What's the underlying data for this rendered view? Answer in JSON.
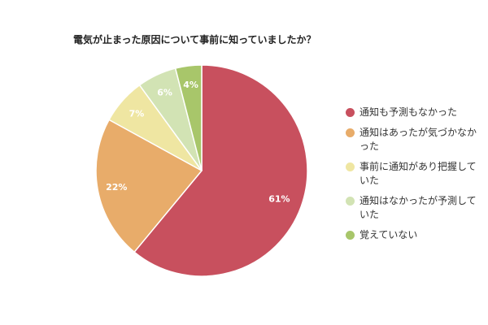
{
  "chart_data": {
    "type": "pie",
    "title": "電気が止まった原因について事前に知っていましたか？",
    "categories": [
      "通知も予測もなかった",
      "通知はあったが気づかなかった",
      "事前に通知があり把握していた",
      "通知はなかったが予測していた",
      "覚えていない"
    ],
    "values": [
      61,
      22,
      7,
      6,
      4
    ],
    "data_labels": [
      "61%",
      "22%",
      "7%",
      "6%",
      "4%"
    ],
    "colors": [
      "#c8505e",
      "#e8ac6a",
      "#efe6a2",
      "#d2e3b4",
      "#a8c66a"
    ],
    "legend_position": "right",
    "start_angle": "top-clockwise"
  }
}
